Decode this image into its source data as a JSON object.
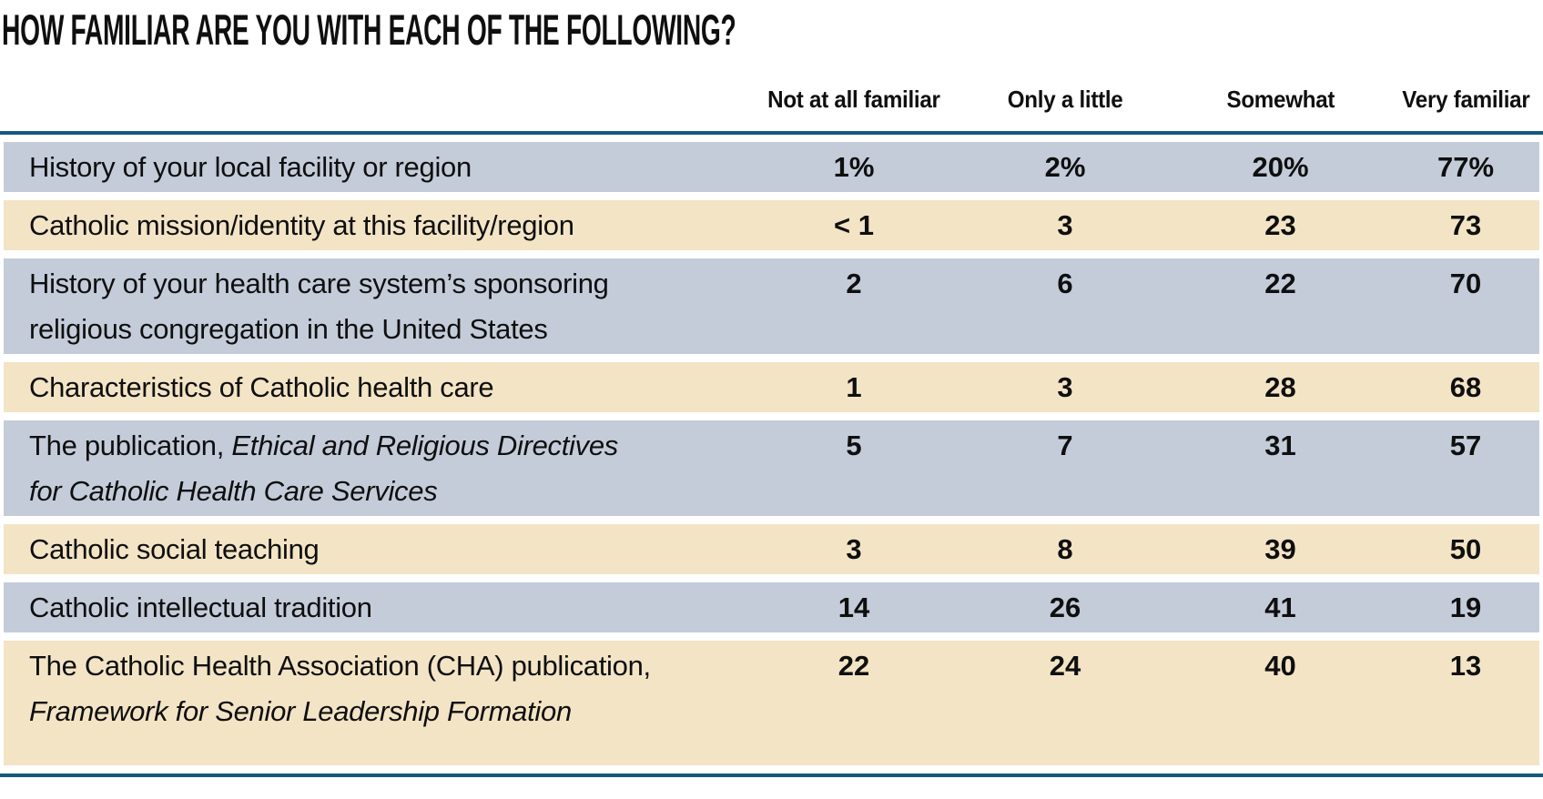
{
  "title": "HOW FAMILIAR ARE YOU WITH EACH OF THE FOLLOWING?",
  "colors": {
    "row_blue": "#c4ccda",
    "row_tan": "#f3e4c5",
    "rule_teal": "#16587e",
    "text": "#0f0f0f",
    "background": "#ffffff"
  },
  "chart_data": {
    "type": "table",
    "title": "HOW FAMILIAR ARE YOU WITH EACH OF THE FOLLOWING?",
    "columns": [
      "Not at all familiar",
      "Only a little",
      "Somewhat",
      "Very familiar"
    ],
    "values_unit": "percent of respondents",
    "rows": [
      {
        "label": "History of your local facility or region",
        "label_lines": [
          [
            {
              "text": "History of your local facility or region",
              "italic": false
            }
          ]
        ],
        "values": [
          "1%",
          "2%",
          "20%",
          "77%"
        ]
      },
      {
        "label": "Catholic mission/identity at this facility/region",
        "label_lines": [
          [
            {
              "text": "Catholic mission/identity at this facility/region",
              "italic": false
            }
          ]
        ],
        "values": [
          "< 1",
          "3",
          "23",
          "73"
        ]
      },
      {
        "label": "History of your health care system’s sponsoring religious congregation in the United States",
        "label_lines": [
          [
            {
              "text": "History of your health care system’s sponsoring",
              "italic": false
            }
          ],
          [
            {
              "text": "religious congregation in the United States",
              "italic": false
            }
          ]
        ],
        "values": [
          "2",
          "6",
          "22",
          "70"
        ]
      },
      {
        "label": "Characteristics of Catholic health care",
        "label_lines": [
          [
            {
              "text": "Characteristics of Catholic health care",
              "italic": false
            }
          ]
        ],
        "values": [
          "1",
          "3",
          "28",
          "68"
        ]
      },
      {
        "label": "The publication, Ethical and Religious Directives for Catholic Health Care Services",
        "label_lines": [
          [
            {
              "text": "The publication, ",
              "italic": false
            },
            {
              "text": "Ethical and Religious Directives",
              "italic": true
            }
          ],
          [
            {
              "text": "for Catholic Health Care Services",
              "italic": true
            }
          ]
        ],
        "values": [
          "5",
          "7",
          "31",
          "57"
        ]
      },
      {
        "label": "Catholic social teaching",
        "label_lines": [
          [
            {
              "text": "Catholic social teaching",
              "italic": false
            }
          ]
        ],
        "values": [
          "3",
          "8",
          "39",
          "50"
        ]
      },
      {
        "label": "Catholic intellectual tradition",
        "label_lines": [
          [
            {
              "text": "Catholic intellectual tradition",
              "italic": false
            }
          ]
        ],
        "values": [
          "14",
          "26",
          "41",
          "19"
        ]
      },
      {
        "label": "The Catholic Health Association (CHA) publication, Framework for Senior Leadership Formation",
        "label_lines": [
          [
            {
              "text": "The Catholic Health Association (CHA) publication,",
              "italic": false
            }
          ],
          [
            {
              "text": "Framework for Senior Leadership Formation",
              "italic": true
            }
          ]
        ],
        "values": [
          "22",
          "24",
          "40",
          "13"
        ]
      }
    ]
  }
}
